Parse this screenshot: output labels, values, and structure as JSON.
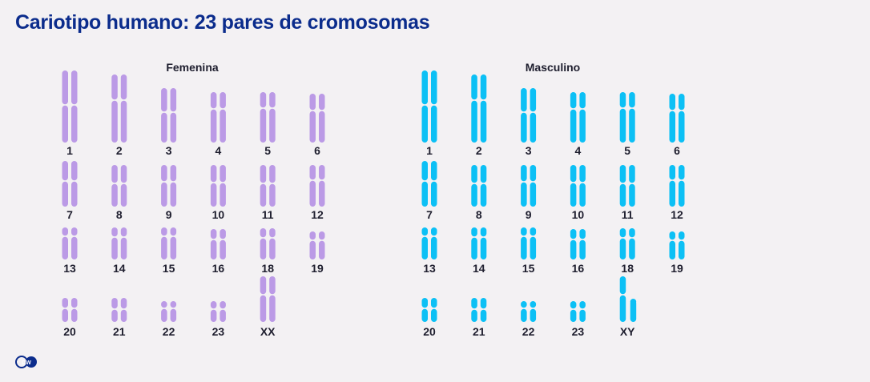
{
  "header": {
    "title": "Cariotipo humano: 23 pares de cromosomas"
  },
  "panels": [
    {
      "id": "female",
      "title": "Femenina",
      "color": "#bb9ae6",
      "chromosomes": [
        {
          "label": "1"
        },
        {
          "label": "2"
        },
        {
          "label": "3"
        },
        {
          "label": "4"
        },
        {
          "label": "5"
        },
        {
          "label": "6"
        },
        {
          "label": "7"
        },
        {
          "label": "8"
        },
        {
          "label": "9"
        },
        {
          "label": "10"
        },
        {
          "label": "11"
        },
        {
          "label": "12"
        },
        {
          "label": "13"
        },
        {
          "label": "14"
        },
        {
          "label": "15"
        },
        {
          "label": "16"
        },
        {
          "label": "18"
        },
        {
          "label": "19"
        },
        {
          "label": "20"
        },
        {
          "label": "21"
        },
        {
          "label": "22"
        },
        {
          "label": "23"
        },
        {
          "label": "XX"
        }
      ]
    },
    {
      "id": "male",
      "title": "Masculino",
      "color": "#0cc0f5",
      "chromosomes": [
        {
          "label": "1"
        },
        {
          "label": "2"
        },
        {
          "label": "3"
        },
        {
          "label": "4"
        },
        {
          "label": "5"
        },
        {
          "label": "6"
        },
        {
          "label": "7"
        },
        {
          "label": "8"
        },
        {
          "label": "9"
        },
        {
          "label": "10"
        },
        {
          "label": "11"
        },
        {
          "label": "12"
        },
        {
          "label": "13"
        },
        {
          "label": "14"
        },
        {
          "label": "15"
        },
        {
          "label": "16"
        },
        {
          "label": "18"
        },
        {
          "label": "19"
        },
        {
          "label": "20"
        },
        {
          "label": "21"
        },
        {
          "label": "22"
        },
        {
          "label": "23"
        },
        {
          "label": "XY"
        }
      ]
    }
  ],
  "logo": {
    "icon": "dw-logo-icon",
    "text": "DW",
    "color": "#0b2c8c"
  }
}
